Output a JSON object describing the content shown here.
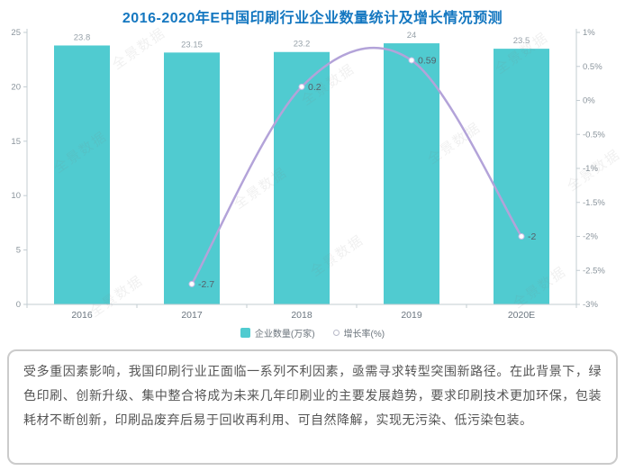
{
  "title": "2016-2020年E中国印刷行业企业数量统计及增长情况预测",
  "watermark": "全景数据",
  "colors": {
    "title": "#1477c0",
    "bar": "#50cbd0",
    "line": "#b3a3d9",
    "line_marker_stroke": "#c9bde6",
    "axis": "#c3ccd2",
    "tick_text": "#8a949c",
    "bar_label": "#97a1a9",
    "point_label": "#555f69",
    "x_label": "#6b7680",
    "legend_text": "#6a737b",
    "desc_text": "#555555",
    "desc_border": "#cbcbcb"
  },
  "chart_data": {
    "type": "combo",
    "title": "2016-2020年E中国印刷行业企业数量统计及增长情况预测",
    "categories": [
      "2016",
      "2017",
      "2018",
      "2019",
      "2020E"
    ],
    "series": [
      {
        "name": "企业数量(万家)",
        "type": "bar",
        "axis": "left",
        "values": [
          23.8,
          23.15,
          23.2,
          24,
          23.5
        ],
        "labels": [
          "23.8",
          "23.15",
          "23.2",
          "24",
          "23.5"
        ]
      },
      {
        "name": "增长率(%)",
        "type": "line",
        "axis": "right",
        "values": [
          null,
          -2.7,
          0.2,
          0.59,
          -2
        ],
        "labels": [
          "",
          "-2.7",
          "0.2",
          "0.59",
          "-2"
        ]
      }
    ],
    "left_axis": {
      "min": 0,
      "max": 25,
      "ticks": [
        {
          "value": 0,
          "label": "0"
        },
        {
          "value": 5,
          "label": "5"
        },
        {
          "value": 10,
          "label": "10"
        },
        {
          "value": 15,
          "label": "15"
        },
        {
          "value": 20,
          "label": "20"
        },
        {
          "value": 25,
          "label": "25"
        }
      ]
    },
    "right_axis": {
      "min": -3,
      "max": 1,
      "ticks": [
        {
          "value": 1,
          "label": "1%"
        },
        {
          "value": 0.5,
          "label": "0.5%"
        },
        {
          "value": 0,
          "label": "0%"
        },
        {
          "value": -0.5,
          "label": "-0.5%"
        },
        {
          "value": -1,
          "label": "-1%"
        },
        {
          "value": -1.5,
          "label": "-1.5%"
        },
        {
          "value": -2,
          "label": "-2%"
        },
        {
          "value": -2.5,
          "label": "-2.5%"
        },
        {
          "value": -3,
          "label": "-3%"
        }
      ]
    },
    "legend": [
      {
        "label": "企业数量(万家)",
        "marker": "square"
      },
      {
        "label": "增长率(%)",
        "marker": "circle"
      }
    ],
    "legend_position": "bottom",
    "grid": false
  },
  "description": "受多重因素影响，我国印刷行业正面临一系列不利因素，亟需寻求转型突围新路径。在此背景下，绿色印刷、创新升级、集中整合将成为未来几年印刷业的主要发展趋势，要求印刷技术更加环保，包装耗材不断创新，印刷品废弃后易于回收再利用、可自然降解，实现无污染、低污染包装。",
  "legend_labels": {
    "bar": "企业数量(万家)",
    "line": "增长率(%)"
  }
}
